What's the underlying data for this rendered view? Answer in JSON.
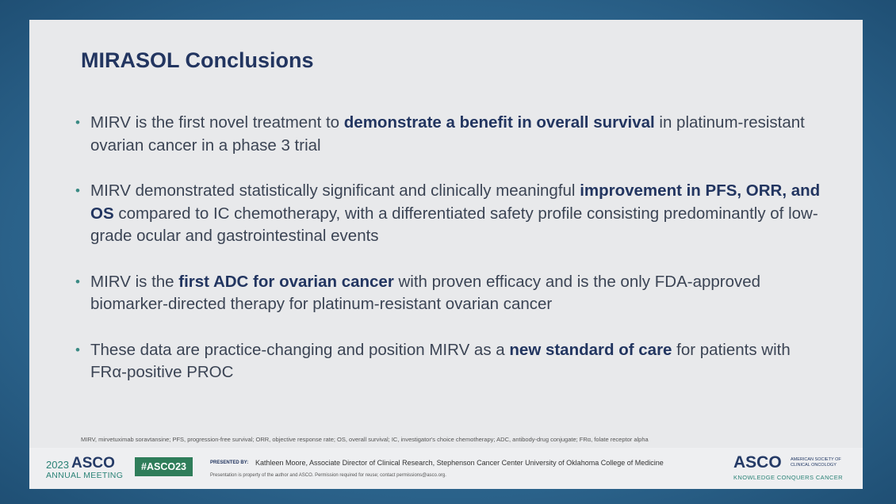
{
  "title": "MIRASOL Conclusions",
  "bullets": [
    [
      {
        "text": "MIRV is the first novel treatment to ",
        "bold": false
      },
      {
        "text": "demonstrate a benefit in overall survival",
        "bold": true
      },
      {
        "text": " in platinum-resistant ovarian cancer in a phase 3 trial",
        "bold": false
      }
    ],
    [
      {
        "text": "MIRV demonstrated statistically significant and clinically meaningful ",
        "bold": false
      },
      {
        "text": "improvement in PFS, ORR, and OS",
        "bold": true
      },
      {
        "text": " compared to IC chemotherapy, with a differentiated safety profile consisting predominantly of low-grade ocular and gastrointestinal events",
        "bold": false
      }
    ],
    [
      {
        "text": "MIRV is the ",
        "bold": false
      },
      {
        "text": "first ADC for ovarian cancer",
        "bold": true
      },
      {
        "text": " with proven efficacy and is the only FDA-approved biomarker-directed therapy for platinum-resistant ovarian cancer",
        "bold": false
      }
    ],
    [
      {
        "text": "These data are practice-changing and position MIRV as a ",
        "bold": false
      },
      {
        "text": "new standard of care",
        "bold": true
      },
      {
        "text": " for patients with FRα-positive PROC",
        "bold": false
      }
    ]
  ],
  "footnote": "MIRV, mirvetuximab soravtansine; PFS, progression-free survival; ORR, objective response rate; OS, overall survival; IC, investigator's choice chemotherapy; ADC, antibody-drug conjugate; FRα, folate receptor alpha",
  "footer": {
    "meeting_year": "2023",
    "meeting_org": "ASCO",
    "meeting_name": "ANNUAL MEETING",
    "hashtag": "#ASCO23",
    "presented_by_label": "PRESENTED BY:",
    "presenter": "Kathleen Moore, Associate Director of Clinical Research, Stephenson Cancer Center University of Oklahoma College of Medicine",
    "property_note": "Presentation is property of the author and ASCO. Permission required for reuse; contact permissions@asco.org.",
    "logo": "ASCO",
    "logo_society_line1": "AMERICAN SOCIETY OF",
    "logo_society_line2": "CLINICAL ONCOLOGY",
    "logo_tagline": "KNOWLEDGE CONQUERS CANCER"
  }
}
